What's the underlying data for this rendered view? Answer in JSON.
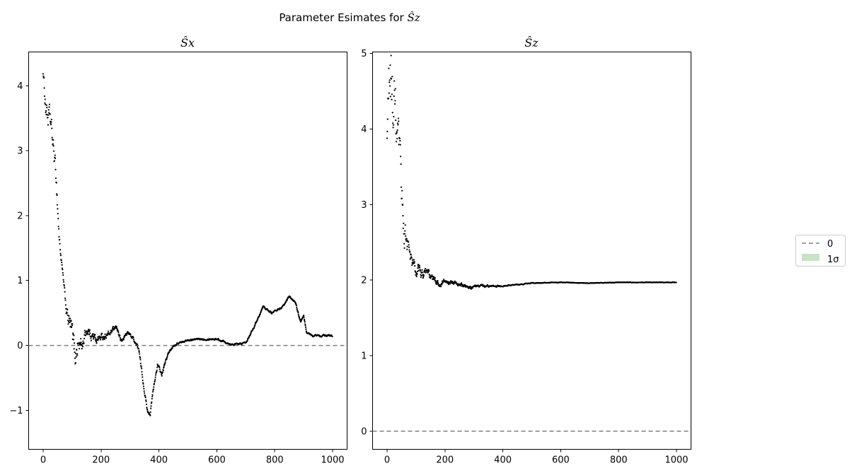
{
  "chart_data": {
    "type": "scatter",
    "suptitle": {
      "prefix": "Parameter Esimates for ",
      "math": "Ŝz"
    },
    "legend": {
      "placement": "outside-right",
      "entries": [
        {
          "label": "0",
          "style": "dashed-line",
          "color": "#808080"
        },
        {
          "label": "1σ",
          "style": "filled-patch",
          "color": "#c8e2c8"
        }
      ]
    },
    "panels": [
      {
        "id": "sx",
        "title": "Ŝx",
        "xlim": [
          -50,
          1050
        ],
        "ylim": [
          -1.6,
          4.52
        ],
        "xticks": [
          0,
          200,
          400,
          600,
          800,
          1000
        ],
        "yticks": [
          -1,
          0,
          1,
          2,
          3,
          4
        ],
        "reference_line": 0,
        "series": [
          {
            "name": "",
            "color": "#000000",
            "anchors_x": [
              0,
              8,
              15,
              25,
              35,
              45,
              55,
              62,
              70,
              80,
              90,
              100,
              110,
              120,
              135,
              150,
              160,
              180,
              200,
              230,
              255,
              270,
              290,
              310,
              330,
              345,
              360,
              370,
              380,
              395,
              410,
              430,
              450,
              470,
              500,
              550,
              600,
              650,
              680,
              700,
              730,
              760,
              790,
              810,
              830,
              850,
              870,
              890,
              900,
              910,
              930,
              960,
              1000
            ],
            "anchors_y": [
              4.2,
              3.75,
              3.55,
              3.45,
              3.05,
              2.6,
              1.7,
              1.35,
              1.0,
              0.55,
              0.35,
              0.15,
              -0.15,
              0.02,
              0.0,
              0.25,
              0.2,
              0.1,
              0.12,
              0.18,
              0.28,
              0.05,
              0.2,
              0.12,
              -0.05,
              -0.55,
              -1.0,
              -1.05,
              -0.7,
              -0.3,
              -0.45,
              -0.15,
              0.0,
              0.04,
              0.08,
              0.1,
              0.1,
              0.02,
              0.02,
              0.05,
              0.3,
              0.6,
              0.5,
              0.55,
              0.6,
              0.75,
              0.68,
              0.35,
              0.45,
              0.2,
              0.15,
              0.15,
              0.15
            ],
            "noise": [
              0.02,
              0.14,
              0.14,
              0.12,
              0.11,
              0.1,
              0.08,
              0.03,
              0.03,
              0.05,
              0.12,
              0.15,
              0.14,
              0.12,
              0.07,
              0.06,
              0.05,
              0.05,
              0.04,
              0.03,
              0.03,
              0.03,
              0.02,
              0.02,
              0.02,
              0.02,
              0.02,
              0.02,
              0.02,
              0.02,
              0.02,
              0.02,
              0.01,
              0.01,
              0.01,
              0.01,
              0.01,
              0.01,
              0.01,
              0.01,
              0.01,
              0.01,
              0.01,
              0.01,
              0.01,
              0.01,
              0.01,
              0.01,
              0.01,
              0.01,
              0.01,
              0.01,
              0.01
            ],
            "count": 1000
          }
        ]
      },
      {
        "id": "sz",
        "title": "Ŝz",
        "xlim": [
          -50,
          1050
        ],
        "ylim": [
          -0.24,
          5.02
        ],
        "xticks": [
          0,
          200,
          400,
          600,
          800,
          1000
        ],
        "yticks": [
          0,
          1,
          2,
          3,
          4,
          5
        ],
        "reference_line": 0,
        "series": [
          {
            "name": "",
            "color": "#000000",
            "anchors_x": [
              0,
              5,
              10,
              20,
              30,
              40,
              50,
              60,
              70,
              80,
              90,
              100,
              120,
              150,
              180,
              200,
              250,
              280,
              300,
              350,
              400,
              450,
              500,
              600,
              700,
              800,
              900,
              1000
            ],
            "anchors_y": [
              3.8,
              4.5,
              4.7,
              4.3,
              4.0,
              3.6,
              3.1,
              2.7,
              2.5,
              2.25,
              2.2,
              2.1,
              2.1,
              2.05,
              1.95,
              1.98,
              1.95,
              1.88,
              1.93,
              1.92,
              1.92,
              1.94,
              1.96,
              1.97,
              1.96,
              1.97,
              1.97,
              1.97
            ],
            "noise": [
              0.1,
              0.4,
              0.4,
              0.35,
              0.3,
              0.25,
              0.2,
              0.15,
              0.12,
              0.1,
              0.08,
              0.06,
              0.05,
              0.04,
              0.03,
              0.02,
              0.02,
              0.02,
              0.01,
              0.01,
              0.005,
              0.004,
              0.003,
              0.002,
              0.002,
              0.002,
              0.002,
              0.002
            ],
            "count": 1000
          }
        ]
      }
    ]
  }
}
